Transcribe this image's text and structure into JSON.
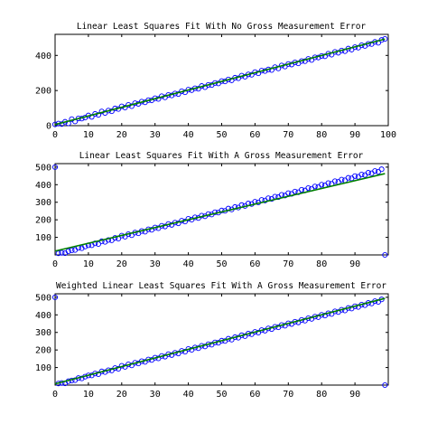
{
  "figure": {
    "background": "#ffffff",
    "marker_color": "#0000ff",
    "line_color": "#008000"
  },
  "chart_data": [
    {
      "type": "scatter",
      "title": "Linear Least Squares Fit With No Gross Measurement Error",
      "xlabel": "",
      "ylabel": "",
      "xlim": [
        0,
        100
      ],
      "ylim": [
        0,
        520
      ],
      "xticks": [
        0,
        10,
        20,
        30,
        40,
        50,
        60,
        70,
        80,
        90,
        100
      ],
      "yticks": [
        0,
        200,
        400
      ],
      "grid": false,
      "series": [
        {
          "kind": "points",
          "marker": "open-circle",
          "x": [
            0,
            1,
            2,
            3,
            4,
            5,
            6,
            7,
            8,
            9,
            10,
            11,
            12,
            13,
            14,
            15,
            16,
            17,
            18,
            19,
            20,
            21,
            22,
            23,
            24,
            25,
            26,
            27,
            28,
            29,
            30,
            31,
            32,
            33,
            34,
            35,
            36,
            37,
            38,
            39,
            40,
            41,
            42,
            43,
            44,
            45,
            46,
            47,
            48,
            49,
            50,
            51,
            52,
            53,
            54,
            55,
            56,
            57,
            58,
            59,
            60,
            61,
            62,
            63,
            64,
            65,
            66,
            67,
            68,
            69,
            70,
            71,
            72,
            73,
            74,
            75,
            76,
            77,
            78,
            79,
            80,
            81,
            82,
            83,
            84,
            85,
            86,
            87,
            88,
            89,
            90,
            91,
            92,
            93,
            94,
            95,
            96,
            97,
            98,
            99
          ],
          "y": [
            7,
            12,
            9,
            22,
            13,
            37,
            24,
            41,
            40,
            46,
            58,
            50,
            67,
            61,
            81,
            72,
            86,
            82,
            98,
            95,
            110,
            103,
            118,
            111,
            128,
            124,
            137,
            133,
            145,
            144,
            156,
            152,
            168,
            161,
            175,
            172,
            183,
            180,
            196,
            190,
            205,
            202,
            213,
            210,
            226,
            219,
            232,
            231,
            243,
            240,
            254,
            252,
            263,
            258,
            273,
            270,
            285,
            279,
            292,
            290,
            305,
            298,
            313,
            311,
            320,
            317,
            333,
            326,
            343,
            337,
            351,
            348,
            360,
            355,
            368,
            367,
            380,
            374,
            389,
            388,
            397,
            395,
            410,
            404,
            420,
            415,
            428,
            424,
            439,
            433,
            447,
            444,
            458,
            454,
            466,
            465,
            477,
            472,
            488,
            494
          ]
        },
        {
          "kind": "fit-line",
          "x": [
            0,
            99
          ],
          "y": [
            6,
            493
          ]
        }
      ]
    },
    {
      "type": "scatter",
      "title": "Linear Least Squares Fit With A Gross Measurement Error",
      "xlabel": "",
      "ylabel": "",
      "xlim": [
        0,
        100
      ],
      "ylim": [
        0,
        520
      ],
      "xticks": [
        0,
        10,
        20,
        30,
        40,
        50,
        60,
        70,
        80,
        90
      ],
      "yticks": [
        100,
        200,
        300,
        400,
        500
      ],
      "grid": false,
      "series": [
        {
          "kind": "points",
          "marker": "open-circle",
          "x": [
            0,
            1,
            2,
            3,
            4,
            5,
            6,
            7,
            8,
            9,
            10,
            11,
            12,
            13,
            14,
            15,
            16,
            17,
            18,
            19,
            20,
            21,
            22,
            23,
            24,
            25,
            26,
            27,
            28,
            29,
            30,
            31,
            32,
            33,
            34,
            35,
            36,
            37,
            38,
            39,
            40,
            41,
            42,
            43,
            44,
            45,
            46,
            47,
            48,
            49,
            50,
            51,
            52,
            53,
            54,
            55,
            56,
            57,
            58,
            59,
            60,
            61,
            62,
            63,
            64,
            65,
            66,
            67,
            68,
            69,
            70,
            71,
            72,
            73,
            74,
            75,
            76,
            77,
            78,
            79,
            80,
            81,
            82,
            83,
            84,
            85,
            86,
            87,
            88,
            89,
            90,
            91,
            92,
            93,
            94,
            95,
            96,
            97,
            98,
            99
          ],
          "y": [
            500,
            9,
            12,
            10,
            21,
            26,
            28,
            40,
            38,
            48,
            55,
            55,
            66,
            62,
            78,
            74,
            85,
            83,
            97,
            93,
            110,
            104,
            118,
            112,
            127,
            123,
            136,
            132,
            146,
            143,
            156,
            152,
            166,
            162,
            176,
            171,
            184,
            180,
            195,
            190,
            206,
            201,
            214,
            210,
            224,
            220,
            233,
            230,
            243,
            241,
            253,
            251,
            264,
            259,
            273,
            270,
            284,
            279,
            293,
            290,
            303,
            299,
            313,
            310,
            323,
            319,
            332,
            329,
            342,
            338,
            352,
            348,
            361,
            357,
            371,
            367,
            381,
            377,
            390,
            387,
            400,
            396,
            409,
            405,
            420,
            416,
            429,
            425,
            439,
            436,
            449,
            445,
            458,
            455,
            468,
            465,
            478,
            474,
            488,
            0
          ]
        },
        {
          "kind": "fit-line",
          "x": [
            0,
            99
          ],
          "y": [
            22,
            463
          ]
        }
      ]
    },
    {
      "type": "scatter",
      "title": "Weighted Linear Least Squares Fit With A Gross Measurement Error",
      "xlabel": "",
      "ylabel": "",
      "xlim": [
        0,
        100
      ],
      "ylim": [
        0,
        520
      ],
      "xticks": [
        0,
        10,
        20,
        30,
        40,
        50,
        60,
        70,
        80,
        90
      ],
      "yticks": [
        100,
        200,
        300,
        400,
        500
      ],
      "grid": false,
      "series": [
        {
          "kind": "points",
          "marker": "open-circle",
          "x": [
            0,
            1,
            2,
            3,
            4,
            5,
            6,
            7,
            8,
            9,
            10,
            11,
            12,
            13,
            14,
            15,
            16,
            17,
            18,
            19,
            20,
            21,
            22,
            23,
            24,
            25,
            26,
            27,
            28,
            29,
            30,
            31,
            32,
            33,
            34,
            35,
            36,
            37,
            38,
            39,
            40,
            41,
            42,
            43,
            44,
            45,
            46,
            47,
            48,
            49,
            50,
            51,
            52,
            53,
            54,
            55,
            56,
            57,
            58,
            59,
            60,
            61,
            62,
            63,
            64,
            65,
            66,
            67,
            68,
            69,
            70,
            71,
            72,
            73,
            74,
            75,
            76,
            77,
            78,
            79,
            80,
            81,
            82,
            83,
            84,
            85,
            86,
            87,
            88,
            89,
            90,
            91,
            92,
            93,
            94,
            95,
            96,
            97,
            98,
            99
          ],
          "y": [
            500,
            9,
            12,
            10,
            22,
            26,
            28,
            40,
            38,
            48,
            55,
            55,
            66,
            62,
            78,
            74,
            85,
            83,
            97,
            93,
            110,
            104,
            118,
            112,
            127,
            123,
            136,
            132,
            146,
            143,
            156,
            152,
            166,
            162,
            176,
            171,
            184,
            180,
            195,
            190,
            206,
            201,
            214,
            210,
            224,
            220,
            233,
            230,
            243,
            241,
            253,
            251,
            264,
            259,
            273,
            270,
            284,
            279,
            293,
            290,
            303,
            299,
            313,
            310,
            323,
            319,
            332,
            329,
            342,
            338,
            352,
            348,
            361,
            357,
            371,
            367,
            381,
            377,
            390,
            387,
            400,
            396,
            409,
            405,
            420,
            416,
            429,
            425,
            439,
            436,
            449,
            445,
            458,
            455,
            468,
            465,
            478,
            474,
            488,
            0
          ]
        },
        {
          "kind": "fit-line",
          "x": [
            0,
            99
          ],
          "y": [
            7,
            494
          ]
        }
      ]
    }
  ]
}
